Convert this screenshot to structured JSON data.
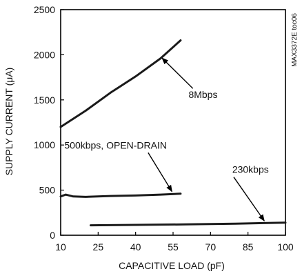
{
  "chart_data": {
    "type": "line",
    "title": "",
    "xlabel": "CAPACITIVE LOAD (pF)",
    "ylabel": "SUPPLY CURRENT (μA)",
    "xlim": [
      10,
      100
    ],
    "ylim": [
      0,
      2500
    ],
    "xticks": [
      10,
      25,
      40,
      55,
      70,
      85,
      100
    ],
    "yticks": [
      0,
      500,
      1000,
      1500,
      2000,
      2500
    ],
    "grid": false,
    "legend": "none",
    "side_note": "MAX3372E toc06",
    "colors": {
      "line": "#1a1a1a",
      "axis": "#000000"
    },
    "series": [
      {
        "label": "8Mbps",
        "x": [
          10,
          20,
          30,
          40,
          50,
          58
        ],
        "y": [
          1200,
          1380,
          1580,
          1760,
          1960,
          2160
        ]
      },
      {
        "label": "500kbps, OPEN-DRAIN",
        "x": [
          10,
          12,
          15,
          20,
          30,
          40,
          50,
          58
        ],
        "y": [
          430,
          450,
          430,
          425,
          435,
          440,
          450,
          460
        ]
      },
      {
        "label": "230kbps",
        "x": [
          22,
          40,
          60,
          80,
          100
        ],
        "y": [
          110,
          115,
          120,
          128,
          140
        ]
      }
    ],
    "annotations": [
      {
        "text": "8Mbps",
        "series": 0,
        "point": [
          50,
          1980
        ],
        "text_pos": [
          67,
          1520
        ]
      },
      {
        "text": "500kbps, OPEN-DRAIN",
        "series": 1,
        "point": [
          55,
          465
        ],
        "text_pos": [
          32,
          960
        ]
      },
      {
        "text": "230kbps",
        "series": 2,
        "point": [
          92,
          140
        ],
        "text_pos": [
          86,
          690
        ]
      }
    ]
  }
}
